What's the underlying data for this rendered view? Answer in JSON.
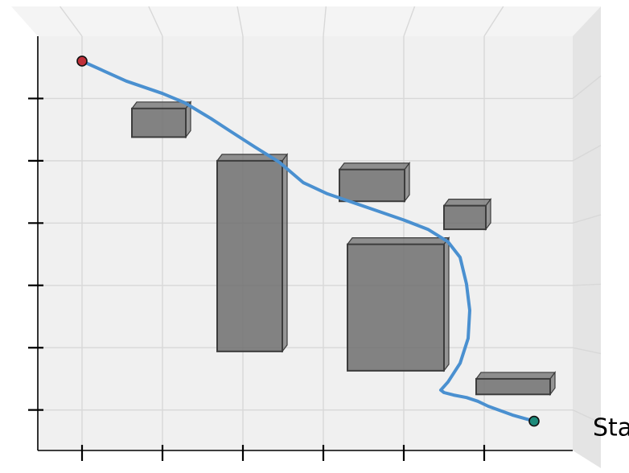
{
  "chart_data": {
    "type": "line",
    "title": "",
    "xlabel": "",
    "ylabel": "",
    "xlim": [
      -0.55,
      6.1
    ],
    "ylim": [
      -0.05,
      6.6
    ],
    "grid": true,
    "x_ticks": [
      0,
      1,
      2,
      3,
      4,
      5
    ],
    "y_ticks": [
      0.6,
      1.6,
      2.6,
      3.6,
      4.6,
      5.6
    ],
    "annotations": [
      {
        "text": "Start",
        "x": 6.35,
        "y": 0.3
      }
    ],
    "series": [
      {
        "color": "#4a90d0",
        "points": [
          [
            5.62,
            0.42
          ],
          [
            5.35,
            0.52
          ],
          [
            5.05,
            0.66
          ],
          [
            4.92,
            0.74
          ],
          [
            4.78,
            0.8
          ],
          [
            4.62,
            0.84
          ],
          [
            4.5,
            0.88
          ],
          [
            4.46,
            0.92
          ],
          [
            4.55,
            1.05
          ],
          [
            4.7,
            1.35
          ],
          [
            4.8,
            1.75
          ],
          [
            4.82,
            2.2
          ],
          [
            4.78,
            2.62
          ],
          [
            4.7,
            3.05
          ],
          [
            4.55,
            3.3
          ],
          [
            4.3,
            3.5
          ],
          [
            4.0,
            3.65
          ],
          [
            3.55,
            3.85
          ],
          [
            3.05,
            4.07
          ],
          [
            2.75,
            4.25
          ],
          [
            2.65,
            4.36
          ],
          [
            2.45,
            4.58
          ],
          [
            2.15,
            4.82
          ],
          [
            1.85,
            5.07
          ],
          [
            1.6,
            5.28
          ],
          [
            1.28,
            5.53
          ],
          [
            1.0,
            5.68
          ],
          [
            0.55,
            5.88
          ],
          [
            0.0,
            6.2
          ]
        ],
        "start_marker": {
          "x": 5.62,
          "y": 0.42,
          "color": "#1d8a7a"
        },
        "end_marker": {
          "x": 0.0,
          "y": 6.2,
          "color": "#c0303a"
        }
      }
    ],
    "obstacles": [
      {
        "x": [
          0.62,
          1.29
        ],
        "y": [
          4.98,
          5.44
        ]
      },
      {
        "x": [
          1.68,
          2.49
        ],
        "y": [
          1.54,
          4.6
        ]
      },
      {
        "x": [
          3.2,
          4.01
        ],
        "y": [
          3.95,
          4.46
        ]
      },
      {
        "x": [
          3.3,
          4.5
        ],
        "y": [
          1.23,
          3.26
        ]
      },
      {
        "x": [
          4.5,
          5.02
        ],
        "y": [
          3.5,
          3.88
        ]
      },
      {
        "x": [
          4.9,
          5.82
        ],
        "y": [
          0.85,
          1.1
        ]
      }
    ],
    "colors": {
      "pane": "#f0f0f0",
      "pane_side": "#e4e4e4",
      "pane_top": "#f4f4f4",
      "grid": "#d8d8d8",
      "obstacle_fill": "#6e6e6e",
      "obstacle_edge": "#3c3c3c",
      "axis": "#000000"
    }
  }
}
